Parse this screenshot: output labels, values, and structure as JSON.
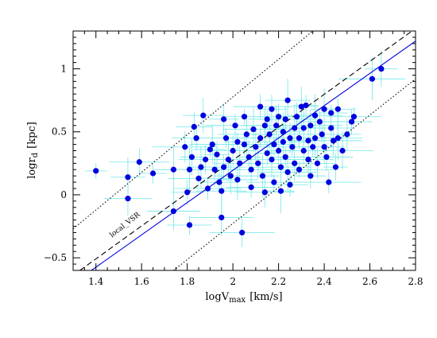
{
  "chart_data": {
    "type": "scatter",
    "xlabel": "logV",
    "xlabel_sub": "max",
    "xlabel_unit": "[km/s]",
    "ylabel": "logr",
    "ylabel_sub": "d",
    "ylabel_unit": "[kpc]",
    "xlim": [
      1.3,
      2.8
    ],
    "ylim": [
      -0.6,
      1.3
    ],
    "x_ticks": [
      1.4,
      1.6,
      1.8,
      2,
      2.2,
      2.4,
      2.6,
      2.8
    ],
    "x_tick_labels": [
      "1.4",
      "1.6",
      "1.8",
      "2",
      "2.2",
      "2.4",
      "2.6",
      "2.8"
    ],
    "y_ticks": [
      -0.5,
      0,
      0.5,
      1
    ],
    "y_tick_labels": [
      "−0.5",
      "0",
      "0.5",
      "1"
    ],
    "grid": false,
    "point_color": "#0000e0",
    "errorbar_color": "#70e8e8",
    "points": [
      [
        1.4,
        0.19
      ],
      [
        1.54,
        0.14
      ],
      [
        1.54,
        -0.03
      ],
      [
        1.59,
        0.26
      ],
      [
        1.65,
        0.17
      ],
      [
        1.74,
        0.2
      ],
      [
        1.74,
        -0.13
      ],
      [
        1.79,
        0.38
      ],
      [
        1.8,
        0.02
      ],
      [
        1.81,
        -0.24
      ],
      [
        1.81,
        0.2
      ],
      [
        1.82,
        0.3
      ],
      [
        1.83,
        0.54
      ],
      [
        1.84,
        0.45
      ],
      [
        1.85,
        0.13
      ],
      [
        1.86,
        0.22
      ],
      [
        1.87,
        0.63
      ],
      [
        1.88,
        0.28
      ],
      [
        1.89,
        0.05
      ],
      [
        1.9,
        0.36
      ],
      [
        1.91,
        0.4
      ],
      [
        1.92,
        0.2
      ],
      [
        1.93,
        0.32
      ],
      [
        1.94,
        0.1
      ],
      [
        1.95,
        0.03
      ],
      [
        1.95,
        -0.18
      ],
      [
        1.96,
        0.6
      ],
      [
        1.96,
        0.22
      ],
      [
        1.97,
        0.45
      ],
      [
        1.98,
        0.28
      ],
      [
        1.99,
        0.15
      ],
      [
        2.0,
        0.35
      ],
      [
        2.01,
        0.55
      ],
      [
        2.02,
        0.42
      ],
      [
        2.02,
        0.12
      ],
      [
        2.03,
        0.25
      ],
      [
        2.04,
        -0.3
      ],
      [
        2.05,
        0.4
      ],
      [
        2.05,
        0.62
      ],
      [
        2.06,
        0.48
      ],
      [
        2.07,
        0.3
      ],
      [
        2.08,
        0.2
      ],
      [
        2.08,
        0.06
      ],
      [
        2.09,
        0.52
      ],
      [
        2.1,
        0.38
      ],
      [
        2.11,
        0.25
      ],
      [
        2.12,
        0.7
      ],
      [
        2.12,
        0.45
      ],
      [
        2.13,
        0.15
      ],
      [
        2.14,
        0.55
      ],
      [
        2.14,
        0.02
      ],
      [
        2.15,
        0.33
      ],
      [
        2.15,
        0.6
      ],
      [
        2.16,
        0.48
      ],
      [
        2.17,
        0.28
      ],
      [
        2.17,
        0.68
      ],
      [
        2.18,
        0.4
      ],
      [
        2.18,
        0.1
      ],
      [
        2.19,
        0.55
      ],
      [
        2.2,
        0.35
      ],
      [
        2.2,
        0.62
      ],
      [
        2.21,
        0.22
      ],
      [
        2.21,
        0.03
      ],
      [
        2.22,
        0.5
      ],
      [
        2.22,
        0.42
      ],
      [
        2.23,
        0.6
      ],
      [
        2.23,
        0.3
      ],
      [
        2.24,
        0.75
      ],
      [
        2.24,
        0.18
      ],
      [
        2.25,
        0.45
      ],
      [
        2.25,
        0.08
      ],
      [
        2.26,
        0.38
      ],
      [
        2.27,
        0.53
      ],
      [
        2.27,
        0.25
      ],
      [
        2.28,
        0.62
      ],
      [
        2.29,
        0.45
      ],
      [
        2.29,
        0.2
      ],
      [
        2.3,
        0.7
      ],
      [
        2.31,
        0.53
      ],
      [
        2.31,
        0.35
      ],
      [
        2.32,
        0.71
      ],
      [
        2.33,
        0.43
      ],
      [
        2.33,
        0.28
      ],
      [
        2.34,
        0.55
      ],
      [
        2.34,
        0.15
      ],
      [
        2.35,
        0.38
      ],
      [
        2.36,
        0.63
      ],
      [
        2.36,
        0.45
      ],
      [
        2.37,
        0.25
      ],
      [
        2.38,
        0.58
      ],
      [
        2.39,
        0.48
      ],
      [
        2.4,
        0.68
      ],
      [
        2.4,
        0.38
      ],
      [
        2.41,
        0.3
      ],
      [
        2.42,
        0.1
      ],
      [
        2.43,
        0.65
      ],
      [
        2.43,
        0.53
      ],
      [
        2.44,
        0.43
      ],
      [
        2.45,
        0.22
      ],
      [
        2.46,
        0.68
      ],
      [
        2.46,
        0.45
      ],
      [
        2.48,
        0.35
      ],
      [
        2.5,
        0.48
      ],
      [
        2.52,
        0.58
      ],
      [
        2.53,
        0.62
      ],
      [
        2.61,
        0.92
      ],
      [
        2.65,
        1.0
      ]
    ],
    "lines": [
      {
        "style": "solid",
        "color": "#0000e0",
        "x": [
          1.38,
          2.8
        ],
        "y": [
          -0.6,
          1.22
        ]
      },
      {
        "style": "dashed",
        "color": "#000000",
        "x": [
          1.33,
          2.8
        ],
        "y": [
          -0.6,
          1.32
        ]
      },
      {
        "style": "dotted",
        "color": "#000000",
        "x": [
          1.3,
          2.35
        ],
        "y": [
          -0.27,
          1.3
        ]
      },
      {
        "style": "dotted",
        "color": "#000000",
        "x": [
          1.74,
          2.8
        ],
        "y": [
          -0.6,
          0.92
        ]
      }
    ],
    "annotation": {
      "text": "local_VSR",
      "x": 1.47,
      "y": -0.34,
      "angle_deg": -38
    }
  }
}
